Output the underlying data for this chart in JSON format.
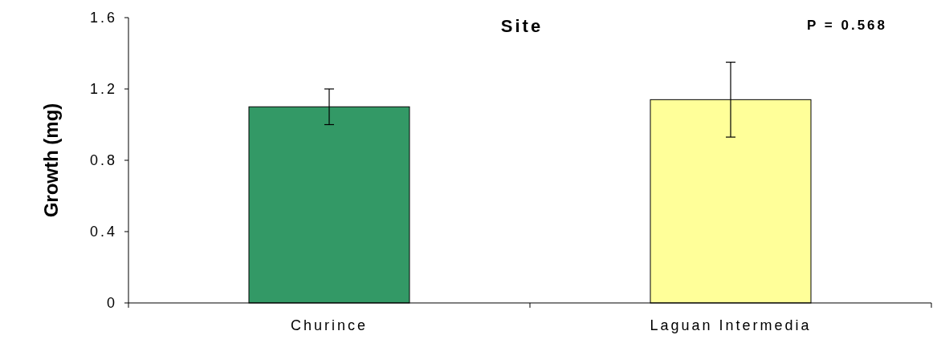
{
  "chart_data": {
    "type": "bar",
    "title": "Site",
    "ylabel": "Growth (mg)",
    "categories": [
      "Churince",
      "Laguan Intermedia"
    ],
    "values": [
      1.1,
      1.14
    ],
    "errors": [
      0.1,
      0.21
    ],
    "colors": [
      "#339966",
      "#ffff99"
    ],
    "ylim": [
      0,
      1.6
    ],
    "yticks": [
      0,
      0.4,
      0.8,
      1.2,
      1.6
    ],
    "annotations": [
      "P = 0.568"
    ]
  }
}
